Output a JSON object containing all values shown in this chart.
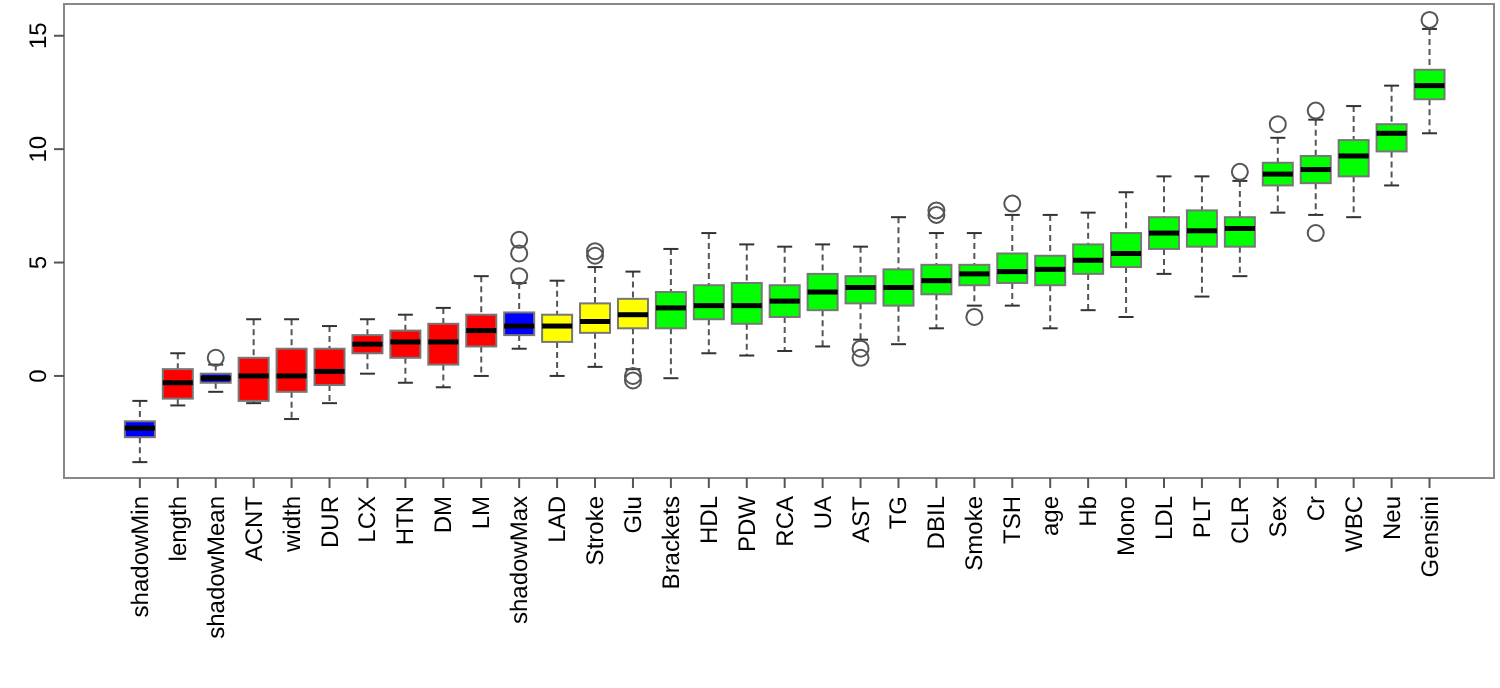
{
  "chart_data": {
    "type": "box",
    "categories": [
      "shadowMin",
      "length",
      "shadowMean",
      "ACNT",
      "width",
      "DUR",
      "LCX",
      "HTN",
      "DM",
      "LM",
      "shadowMax",
      "LAD",
      "Stroke",
      "Glu",
      "Brackets",
      "HDL",
      "PDW",
      "RCA",
      "UA",
      "AST",
      "TG",
      "DBIL",
      "Smoke",
      "TSH",
      "age",
      "Hb",
      "Mono",
      "LDL",
      "PLT",
      "CLR",
      "Sex",
      "Cr",
      "WBC",
      "Neu",
      "Gensini"
    ],
    "colors": [
      "#0000ff",
      "#ff0000",
      "#0000ff",
      "#ff0000",
      "#ff0000",
      "#ff0000",
      "#ff0000",
      "#ff0000",
      "#ff0000",
      "#ff0000",
      "#0000ff",
      "#ffff00",
      "#ffff00",
      "#ffff00",
      "#00ff00",
      "#00ff00",
      "#00ff00",
      "#00ff00",
      "#00ff00",
      "#00ff00",
      "#00ff00",
      "#00ff00",
      "#00ff00",
      "#00ff00",
      "#00ff00",
      "#00ff00",
      "#00ff00",
      "#00ff00",
      "#00ff00",
      "#00ff00",
      "#00ff00",
      "#00ff00",
      "#00ff00",
      "#00ff00",
      "#00ff00"
    ],
    "boxes": [
      {
        "low": -3.8,
        "q1": -2.7,
        "median": -2.3,
        "q3": -2.0,
        "high": -1.1
      },
      {
        "low": -1.3,
        "q1": -1.0,
        "median": -0.3,
        "q3": 0.3,
        "high": 1.0
      },
      {
        "low": -0.7,
        "q1": -0.3,
        "median": -0.1,
        "q3": 0.1,
        "high": 0.5,
        "outliers": [
          0.8
        ]
      },
      {
        "low": -1.2,
        "q1": -1.1,
        "median": 0.0,
        "q3": 0.8,
        "high": 2.5
      },
      {
        "low": -1.9,
        "q1": -0.7,
        "median": 0.0,
        "q3": 1.2,
        "high": 2.5
      },
      {
        "low": -1.2,
        "q1": -0.4,
        "median": 0.2,
        "q3": 1.2,
        "high": 2.2
      },
      {
        "low": 0.1,
        "q1": 1.0,
        "median": 1.4,
        "q3": 1.8,
        "high": 2.5
      },
      {
        "low": -0.3,
        "q1": 0.8,
        "median": 1.5,
        "q3": 2.0,
        "high": 2.7
      },
      {
        "low": -0.5,
        "q1": 0.5,
        "median": 1.5,
        "q3": 2.3,
        "high": 3.0
      },
      {
        "low": 0.0,
        "q1": 1.3,
        "median": 2.0,
        "q3": 2.7,
        "high": 4.4
      },
      {
        "low": 1.2,
        "q1": 1.8,
        "median": 2.2,
        "q3": 2.8,
        "high": 4.1,
        "outliers": [
          6.0,
          5.4,
          4.4
        ]
      },
      {
        "low": 0.0,
        "q1": 1.5,
        "median": 2.2,
        "q3": 2.7,
        "high": 4.2
      },
      {
        "low": 0.4,
        "q1": 1.9,
        "median": 2.4,
        "q3": 3.2,
        "high": 4.8,
        "outliers": [
          5.5,
          5.3
        ]
      },
      {
        "low": 0.3,
        "q1": 2.1,
        "median": 2.7,
        "q3": 3.4,
        "high": 4.6,
        "outliers": [
          0.0,
          -0.2
        ]
      },
      {
        "low": -0.1,
        "q1": 2.1,
        "median": 3.0,
        "q3": 3.7,
        "high": 5.6
      },
      {
        "low": 1.0,
        "q1": 2.5,
        "median": 3.1,
        "q3": 4.0,
        "high": 6.3
      },
      {
        "low": 0.9,
        "q1": 2.3,
        "median": 3.1,
        "q3": 4.1,
        "high": 5.8
      },
      {
        "low": 1.1,
        "q1": 2.6,
        "median": 3.3,
        "q3": 4.0,
        "high": 5.7
      },
      {
        "low": 1.3,
        "q1": 2.9,
        "median": 3.7,
        "q3": 4.5,
        "high": 5.8
      },
      {
        "low": 1.6,
        "q1": 3.2,
        "median": 3.9,
        "q3": 4.4,
        "high": 5.7,
        "outliers": [
          1.2,
          0.8
        ]
      },
      {
        "low": 1.4,
        "q1": 3.1,
        "median": 3.9,
        "q3": 4.7,
        "high": 7.0
      },
      {
        "low": 2.1,
        "q1": 3.6,
        "median": 4.2,
        "q3": 4.9,
        "high": 6.3,
        "outliers": [
          7.3,
          7.1
        ]
      },
      {
        "low": 3.1,
        "q1": 4.0,
        "median": 4.5,
        "q3": 4.9,
        "high": 6.3,
        "outliers": [
          2.6
        ]
      },
      {
        "low": 3.1,
        "q1": 4.1,
        "median": 4.6,
        "q3": 5.4,
        "high": 7.1,
        "outliers": [
          7.6
        ]
      },
      {
        "low": 2.1,
        "q1": 4.0,
        "median": 4.7,
        "q3": 5.3,
        "high": 7.1
      },
      {
        "low": 2.9,
        "q1": 4.5,
        "median": 5.1,
        "q3": 5.8,
        "high": 7.2
      },
      {
        "low": 2.6,
        "q1": 4.8,
        "median": 5.4,
        "q3": 6.3,
        "high": 8.1
      },
      {
        "low": 4.5,
        "q1": 5.6,
        "median": 6.3,
        "q3": 7.0,
        "high": 8.8
      },
      {
        "low": 3.5,
        "q1": 5.7,
        "median": 6.4,
        "q3": 7.3,
        "high": 8.8
      },
      {
        "low": 4.4,
        "q1": 5.7,
        "median": 6.5,
        "q3": 7.0,
        "high": 8.6,
        "outliers": [
          9.0
        ]
      },
      {
        "low": 7.2,
        "q1": 8.4,
        "median": 8.9,
        "q3": 9.4,
        "high": 10.5,
        "outliers": [
          11.1
        ]
      },
      {
        "low": 7.1,
        "q1": 8.5,
        "median": 9.1,
        "q3": 9.7,
        "high": 11.3,
        "outliers": [
          11.7,
          6.3
        ]
      },
      {
        "low": 7.0,
        "q1": 8.8,
        "median": 9.7,
        "q3": 10.4,
        "high": 11.9
      },
      {
        "low": 8.4,
        "q1": 9.9,
        "median": 10.7,
        "q3": 11.1,
        "high": 12.8
      },
      {
        "low": 10.7,
        "q1": 12.2,
        "median": 12.8,
        "q3": 13.5,
        "high": 15.3,
        "outliers": [
          15.7
        ]
      }
    ],
    "ylim": [
      -4.5,
      16.4
    ],
    "yticks": [
      0,
      5,
      10,
      15
    ]
  }
}
